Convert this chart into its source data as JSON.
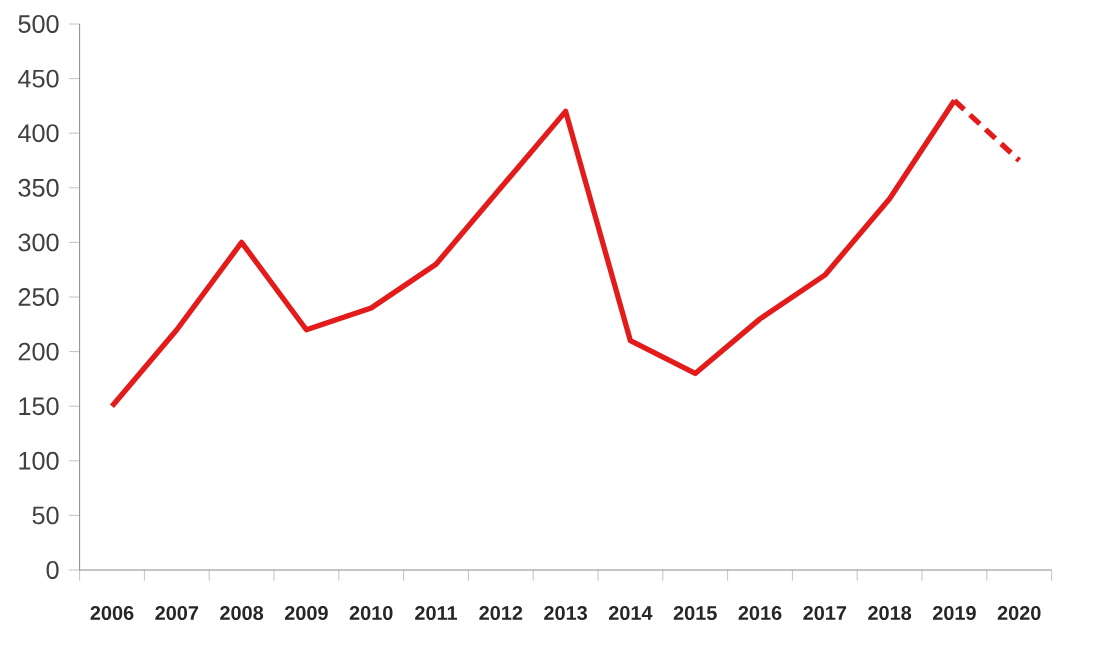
{
  "chart_data": {
    "type": "line",
    "categories": [
      "2006",
      "2007",
      "2008",
      "2009",
      "2010",
      "2011",
      "2012",
      "2013",
      "2014",
      "2015",
      "2016",
      "2017",
      "2018",
      "2019",
      "2020"
    ],
    "series": [
      {
        "color": "#e41b1b",
        "line_style": "solid",
        "values": [
          150,
          220,
          300,
          220,
          240,
          280,
          350,
          420,
          210,
          180,
          230,
          270,
          340,
          430,
          null
        ]
      },
      {
        "color": "#e41b1b",
        "line_style": "dashed",
        "values": [
          null,
          null,
          null,
          null,
          null,
          null,
          null,
          null,
          null,
          null,
          null,
          null,
          null,
          430,
          375
        ]
      }
    ],
    "ylim": [
      0,
      500
    ],
    "yticks": [
      0,
      50,
      100,
      150,
      200,
      250,
      300,
      350,
      400,
      450,
      500
    ],
    "grid": false,
    "legend": false,
    "marker": "none"
  }
}
